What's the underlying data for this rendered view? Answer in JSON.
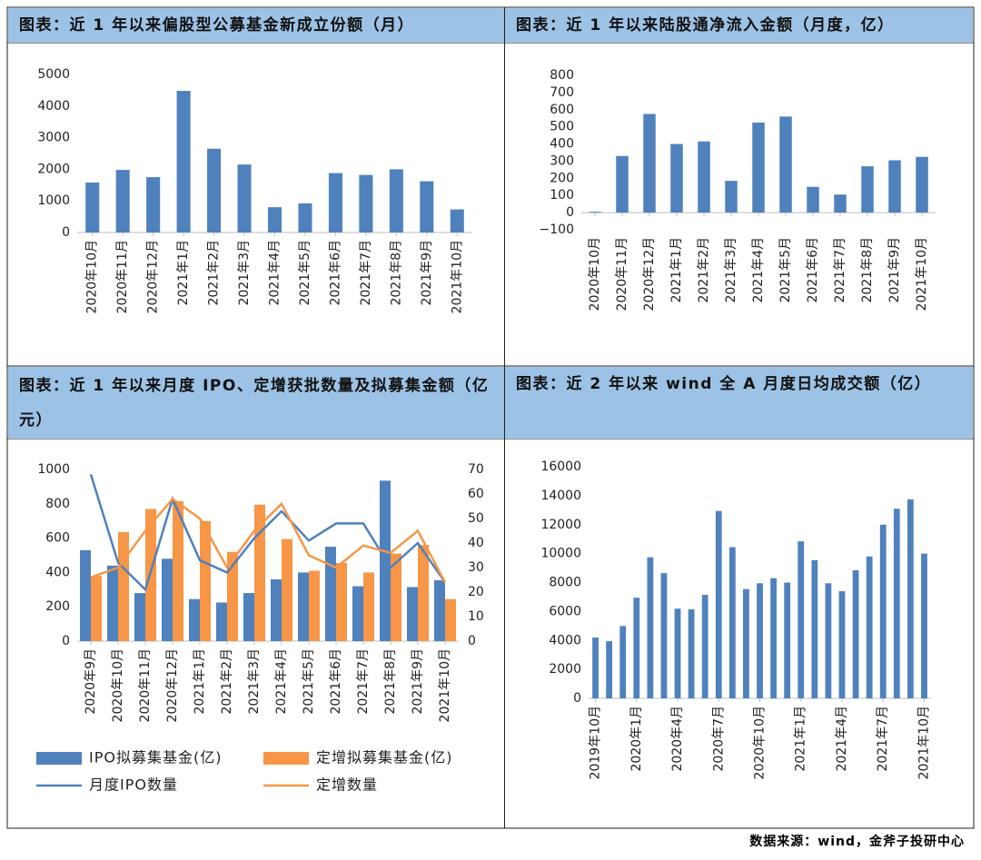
{
  "chart_data": [
    {
      "type": "bar",
      "title": "图表：近 1 年以来偏股型公募基金新成立份额（月）",
      "categories": [
        "2020年10月",
        "2020年11月",
        "2020年12月",
        "2021年1月",
        "2021年2月",
        "2021年3月",
        "2021年4月",
        "2021年5月",
        "2021年6月",
        "2021年7月",
        "2021年8月",
        "2021年9月",
        "2021年10月"
      ],
      "values": [
        1580,
        1980,
        1750,
        4480,
        2650,
        2150,
        800,
        920,
        1880,
        1820,
        2000,
        1620,
        730
      ],
      "color": "#4f81bd",
      "ylim": [
        0,
        5000
      ],
      "yticks": [
        0,
        1000,
        2000,
        3000,
        4000,
        5000
      ]
    },
    {
      "type": "bar",
      "title": "图表：近 1 年以来陆股通净流入金额（月度，亿）",
      "categories": [
        "2020年10月",
        "2020年11月",
        "2020年12月",
        "2021年1月",
        "2021年2月",
        "2021年3月",
        "2021年4月",
        "2021年5月",
        "2021年6月",
        "2021年7月",
        "2021年8月",
        "2021年9月",
        "2021年10月"
      ],
      "values": [
        5,
        330,
        575,
        400,
        415,
        185,
        525,
        560,
        150,
        105,
        270,
        305,
        325
      ],
      "color": "#4f81bd",
      "ylim": [
        -100,
        800
      ],
      "yticks": [
        {
          "value": -100,
          "label": "−100"
        },
        0,
        100,
        200,
        300,
        400,
        500,
        600,
        700,
        800
      ]
    },
    {
      "type": "combo",
      "title": "图表：近 1 年以来月度 IPO、定增获批数量及拟募集金额（亿元）",
      "categories": [
        "2020年9月",
        "2020年10月",
        "2020年11月",
        "2020年12月",
        "2021年1月",
        "2021年2月",
        "2021年3月",
        "2021年4月",
        "2021年5月",
        "2021年6月",
        "2021年7月",
        "2021年8月",
        "2021年9月",
        "2021年10月"
      ],
      "series": [
        {
          "name": "IPO拟募集基金(亿)",
          "type": "bar",
          "color": "#4f81bd",
          "values": [
            530,
            440,
            280,
            480,
            245,
            225,
            280,
            360,
            400,
            550,
            320,
            935,
            315,
            355
          ]
        },
        {
          "name": "定增拟募集基金(亿)",
          "type": "bar",
          "color": "#f79646",
          "values": [
            380,
            635,
            770,
            815,
            700,
            520,
            795,
            595,
            410,
            455,
            400,
            510,
            560,
            245
          ]
        },
        {
          "name": "月度IPO数量",
          "type": "line",
          "axis": "y2",
          "color": "#4f81bd",
          "values": [
            68,
            32,
            21,
            58,
            33,
            28,
            42,
            53,
            41,
            48,
            48,
            30,
            40,
            24
          ]
        },
        {
          "name": "定增数量",
          "type": "line",
          "axis": "y2",
          "color": "#f79646",
          "values": [
            26,
            30,
            45,
            58,
            50,
            30,
            45,
            56,
            35,
            30,
            39,
            36,
            45,
            24
          ]
        }
      ],
      "ylim": [
        0,
        1000
      ],
      "yticks": [
        0,
        200,
        400,
        600,
        800,
        1000
      ],
      "y2lim": [
        0,
        70
      ],
      "y2ticks": [
        0,
        10,
        20,
        30,
        40,
        50,
        60,
        70
      ]
    },
    {
      "type": "bar",
      "title": "图表：近 2 年以来 wind 全 A 月度日均成交额（亿）",
      "categories": [
        "2019年10月",
        null,
        null,
        "2020年1月",
        null,
        null,
        "2020年4月",
        null,
        null,
        "2020年7月",
        null,
        null,
        "2020年10月",
        null,
        null,
        "2021年1月",
        null,
        null,
        "2021年4月",
        null,
        null,
        "2021年7月",
        null,
        null,
        "2021年10月"
      ],
      "values": [
        4200,
        3950,
        5000,
        6950,
        9750,
        8650,
        6200,
        6150,
        7150,
        12950,
        10450,
        7550,
        7950,
        8300,
        8000,
        10850,
        9550,
        7950,
        7400,
        8850,
        9800,
        12000,
        13100,
        13750,
        10000
      ],
      "color": "#4f81bd",
      "ylim": [
        0,
        16000
      ],
      "yticks": [
        0,
        2000,
        4000,
        6000,
        8000,
        10000,
        12000,
        14000,
        16000
      ]
    }
  ],
  "source": "数据来源：wind，金斧子投研中心"
}
